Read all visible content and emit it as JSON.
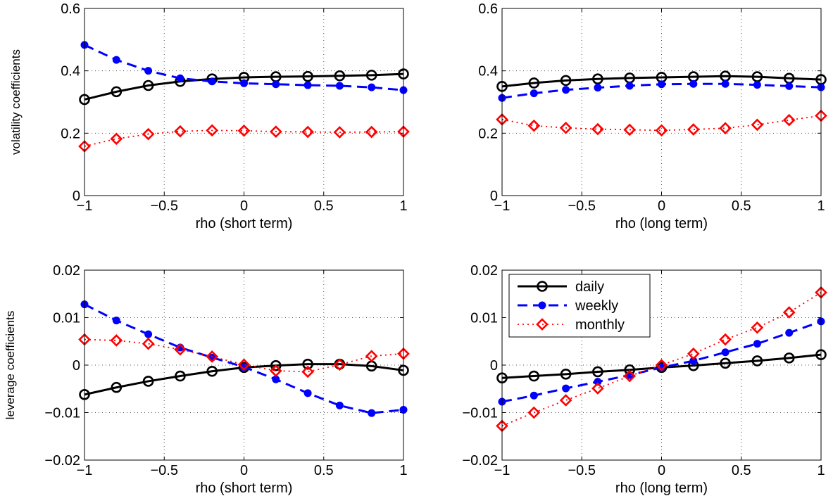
{
  "chart_data": [
    {
      "type": "line",
      "xlabel": "rho (short term)",
      "ylabel": "volatility coefficients",
      "xlim": [
        -1,
        1
      ],
      "ylim": [
        0,
        0.6
      ],
      "xticks": [
        "−1",
        "−0.5",
        "0",
        "0.5",
        "1"
      ],
      "yticks": [
        "0",
        "0.2",
        "0.4",
        "0.6"
      ],
      "grid": true,
      "x": [
        -1,
        -0.8,
        -0.6,
        -0.4,
        -0.2,
        0,
        0.2,
        0.4,
        0.6,
        0.8,
        1
      ],
      "series": [
        {
          "name": "daily",
          "values": [
            0.308,
            0.333,
            0.353,
            0.366,
            0.374,
            0.379,
            0.381,
            0.382,
            0.384,
            0.386,
            0.39
          ]
        },
        {
          "name": "weekly",
          "values": [
            0.483,
            0.435,
            0.4,
            0.376,
            0.366,
            0.36,
            0.357,
            0.354,
            0.352,
            0.347,
            0.338
          ]
        },
        {
          "name": "monthly",
          "values": [
            0.158,
            0.182,
            0.197,
            0.206,
            0.209,
            0.208,
            0.205,
            0.204,
            0.203,
            0.204,
            0.205
          ]
        }
      ]
    },
    {
      "type": "line",
      "xlabel": "rho (long term)",
      "ylabel": "",
      "xlim": [
        -1,
        1
      ],
      "ylim": [
        0,
        0.6
      ],
      "xticks": [
        "−1",
        "−0.5",
        "0",
        "0.5",
        "1"
      ],
      "yticks": [
        "0",
        "0.2",
        "0.4",
        "0.6"
      ],
      "grid": true,
      "x": [
        -1,
        -0.8,
        -0.6,
        -0.4,
        -0.2,
        0,
        0.2,
        0.4,
        0.6,
        0.8,
        1
      ],
      "series": [
        {
          "name": "daily",
          "values": [
            0.35,
            0.361,
            0.369,
            0.374,
            0.377,
            0.379,
            0.381,
            0.383,
            0.381,
            0.376,
            0.372
          ]
        },
        {
          "name": "weekly",
          "values": [
            0.313,
            0.328,
            0.339,
            0.346,
            0.352,
            0.357,
            0.358,
            0.358,
            0.355,
            0.351,
            0.347
          ]
        },
        {
          "name": "monthly",
          "values": [
            0.244,
            0.224,
            0.217,
            0.213,
            0.211,
            0.209,
            0.212,
            0.216,
            0.227,
            0.242,
            0.256
          ]
        }
      ]
    },
    {
      "type": "line",
      "xlabel": "rho (short term)",
      "ylabel": "leverage coefficients",
      "xlim": [
        -1,
        1
      ],
      "ylim": [
        -0.02,
        0.02
      ],
      "xticks": [
        "−1",
        "−0.5",
        "0",
        "0.5",
        "1"
      ],
      "yticks": [
        "−0.02",
        "−0.01",
        "0",
        "0.01",
        "0.02"
      ],
      "grid": true,
      "x": [
        -1,
        -0.8,
        -0.6,
        -0.4,
        -0.2,
        0,
        0.2,
        0.4,
        0.6,
        0.8,
        1
      ],
      "series": [
        {
          "name": "daily",
          "values": [
            -0.0062,
            -0.0047,
            -0.0034,
            -0.0023,
            -0.0013,
            -0.0005,
            -0.0001,
            0.0002,
            0.0002,
            -0.0002,
            -0.0011
          ]
        },
        {
          "name": "weekly",
          "values": [
            0.0128,
            0.0094,
            0.0065,
            0.0037,
            0.0016,
            -0.0004,
            -0.003,
            -0.0059,
            -0.0085,
            -0.0101,
            -0.0094
          ]
        },
        {
          "name": "monthly",
          "values": [
            0.0054,
            0.0052,
            0.0045,
            0.0033,
            0.0018,
            0.0001,
            -0.0012,
            -0.0014,
            0.0001,
            0.0019,
            0.0024
          ]
        }
      ]
    },
    {
      "type": "line",
      "xlabel": "rho (long term)",
      "ylabel": "",
      "xlim": [
        -1,
        1
      ],
      "ylim": [
        -0.02,
        0.02
      ],
      "xticks": [
        "−1",
        "−0.5",
        "0",
        "0.5",
        "1"
      ],
      "yticks": [
        "−0.02",
        "−0.01",
        "0",
        "0.01",
        "0.02"
      ],
      "grid": true,
      "legend": "top-left",
      "x": [
        -1,
        -0.8,
        -0.6,
        -0.4,
        -0.2,
        0,
        0.2,
        0.4,
        0.6,
        0.8,
        1
      ],
      "series": [
        {
          "name": "daily",
          "values": [
            -0.0027,
            -0.0023,
            -0.0019,
            -0.0014,
            -0.001,
            -0.0005,
            -0.0001,
            0.0004,
            0.0009,
            0.0015,
            0.0022
          ]
        },
        {
          "name": "weekly",
          "values": [
            -0.0077,
            -0.0064,
            -0.0049,
            -0.0035,
            -0.0021,
            -0.0005,
            0.0009,
            0.0027,
            0.0045,
            0.0068,
            0.0092
          ]
        },
        {
          "name": "monthly",
          "values": [
            -0.0128,
            -0.01,
            -0.0074,
            -0.0049,
            -0.0023,
            0.0,
            0.0024,
            0.0054,
            0.0079,
            0.0111,
            0.0153
          ]
        }
      ]
    }
  ],
  "legend": {
    "entries": [
      "daily",
      "weekly",
      "monthly"
    ]
  },
  "colors": {
    "daily": "#000000",
    "weekly": "#0000ff",
    "monthly": "#ff0000",
    "grid": "#555555"
  }
}
